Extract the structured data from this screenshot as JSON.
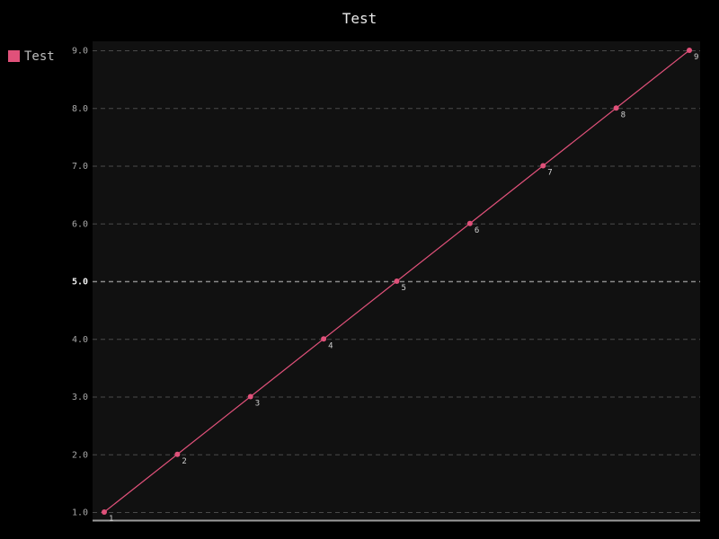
{
  "chart_data": {
    "type": "line",
    "title": "Test",
    "xlabel": "",
    "ylabel": "",
    "grid": true,
    "legend": "top-left",
    "ylim": [
      1,
      9
    ],
    "yticks": [
      1.0,
      2.0,
      3.0,
      4.0,
      5.0,
      6.0,
      7.0,
      8.0,
      9.0
    ],
    "ytick_labels": [
      "1.0",
      "2.0",
      "3.0",
      "4.0",
      "5.0",
      "6.0",
      "7.0",
      "8.0",
      "9.0"
    ],
    "major_ytick": 5.0,
    "series": [
      {
        "name": "Test",
        "color": "#e0517a",
        "values": [
          1,
          2,
          3,
          4,
          5,
          6,
          7,
          8,
          9
        ],
        "labels": [
          "1",
          "2",
          "3",
          "4",
          "5",
          "6",
          "7",
          "8",
          "9"
        ]
      }
    ]
  },
  "colors": {
    "background": "#000000",
    "plot_background": "#111111",
    "grid": "#4a4a4a",
    "grid_major": "#8a8a8a",
    "axis": "#9a9a9a"
  }
}
